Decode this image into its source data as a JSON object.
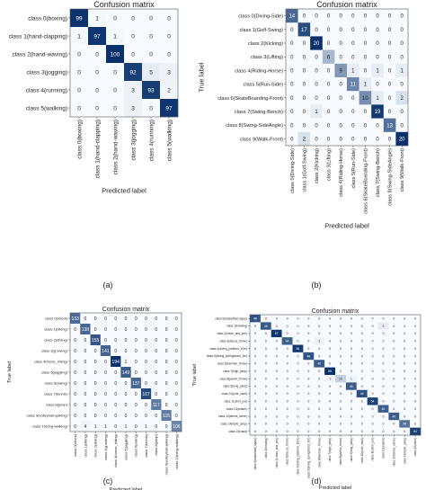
{
  "chart_data": [
    {
      "type": "heatmap",
      "caption": "(a)",
      "title": "Confusion matrix",
      "xlabel": "Predicted label",
      "ylabel": "True label",
      "categories": [
        "class 0(boxing)",
        "class 1(hand-clapping)",
        "class 2(hand-waving)",
        "class 3(jogging)",
        "class 4(running)",
        "class 5(walking)"
      ],
      "matrix": [
        [
          99,
          1,
          0,
          0,
          0,
          0
        ],
        [
          1,
          97,
          1,
          0,
          0,
          0
        ],
        [
          0,
          0,
          100,
          0,
          0,
          0
        ],
        [
          0,
          0,
          0,
          92,
          5,
          3
        ],
        [
          0,
          0,
          0,
          3,
          93,
          2
        ],
        [
          0,
          0,
          0,
          3,
          0,
          97
        ]
      ],
      "vmax": 100
    },
    {
      "type": "heatmap",
      "caption": "(b)",
      "title": "Confusion matrix",
      "xlabel": "Predicted label",
      "ylabel": "True label",
      "categories": [
        "class 0(Diving-Side)",
        "class 1(Golf-Swing)",
        "class 2(Kicking)",
        "class 3(Lifting)",
        "class 4(Riding-Horse)",
        "class 5(Run-Side)",
        "class 6(SkateBoarding-Front)",
        "class 7(Swing-Bench)",
        "class 8(Swing-SideAngle)",
        "class 9(Walk-Front)"
      ],
      "matrix": [
        [
          14,
          0,
          0,
          0,
          0,
          0,
          0,
          0,
          0,
          0
        ],
        [
          0,
          17,
          0,
          0,
          0,
          0,
          0,
          0,
          0,
          0
        ],
        [
          0,
          0,
          20,
          0,
          0,
          0,
          0,
          0,
          0,
          0
        ],
        [
          0,
          0,
          0,
          6,
          0,
          0,
          0,
          0,
          0,
          0
        ],
        [
          0,
          0,
          0,
          0,
          9,
          1,
          0,
          1,
          0,
          1
        ],
        [
          0,
          0,
          0,
          0,
          0,
          11,
          1,
          0,
          0,
          0
        ],
        [
          0,
          0,
          0,
          0,
          0,
          0,
          10,
          1,
          0,
          2
        ],
        [
          0,
          0,
          1,
          0,
          0,
          0,
          0,
          19,
          0,
          0
        ],
        [
          0,
          0,
          0,
          0,
          0,
          0,
          0,
          0,
          13,
          0
        ],
        [
          0,
          2,
          0,
          0,
          0,
          0,
          0,
          0,
          0,
          20
        ]
      ],
      "vmax": 20
    },
    {
      "type": "heatmap",
      "caption": "(c)",
      "title": "Confusion matrix",
      "xlabel": "Predicted label",
      "ylabel": "True label",
      "categories": [
        "class 0(shoot)",
        "class 1(biking)",
        "class 2(diving)",
        "class 3(g-swing)",
        "class 4(horse_riding)",
        "class 5(juggling)",
        "class 6(swing)",
        "class 7(tennis)",
        "class 8(jump)",
        "class 9(volleyball-spiking)",
        "class 10(dog-walking)"
      ],
      "matrix": [
        [
          133,
          0,
          0,
          0,
          0,
          0,
          0,
          0,
          0,
          0,
          0
        ],
        [
          0,
          138,
          0,
          0,
          0,
          0,
          0,
          0,
          0,
          0,
          0
        ],
        [
          0,
          0,
          155,
          0,
          0,
          0,
          0,
          0,
          0,
          0,
          0
        ],
        [
          0,
          0,
          0,
          141,
          0,
          0,
          0,
          0,
          0,
          0,
          0
        ],
        [
          0,
          0,
          0,
          0,
          194,
          1,
          0,
          0,
          0,
          0,
          0
        ],
        [
          0,
          0,
          0,
          0,
          0,
          149,
          0,
          0,
          0,
          0,
          0
        ],
        [
          0,
          0,
          0,
          0,
          0,
          0,
          137,
          0,
          0,
          0,
          0
        ],
        [
          0,
          0,
          0,
          0,
          0,
          0,
          0,
          167,
          0,
          0,
          0
        ],
        [
          0,
          0,
          0,
          0,
          0,
          0,
          0,
          0,
          117,
          0,
          0
        ],
        [
          0,
          0,
          0,
          0,
          0,
          0,
          0,
          0,
          0,
          115,
          0
        ],
        [
          0,
          4,
          1,
          1,
          0,
          1,
          0,
          1,
          0,
          0,
          106
        ]
      ],
      "vmax": 194
    },
    {
      "type": "heatmap",
      "caption": "(d)",
      "title": "Confusion matrix",
      "xlabel": "Predicted label",
      "ylabel": "True label",
      "categories": [
        "class 0(basketball_layup)",
        "class 1(bowling)",
        "class 2(clean_and_jerk)",
        "class 3(discus_throw)",
        "class 4(diving_platform_10m)",
        "class 5(diving_springboard_3m)",
        "class 6(hammer_throw)",
        "class 7(high_jump)",
        "class 8(javelin_throw)",
        "class 9(long_jump)",
        "class 10(pole_vault)",
        "class 11(shot_put)",
        "class 12(snatch)",
        "class 13(tennis_serve)",
        "class 14(triple_jump)",
        "class 15(vault)"
      ],
      "matrix": [
        [
          48,
          0,
          0,
          0,
          0,
          0,
          0,
          0,
          0,
          0,
          0,
          0,
          0,
          0,
          0,
          0
        ],
        [
          0,
          46,
          0,
          0,
          0,
          0,
          0,
          0,
          0,
          0,
          0,
          0,
          3,
          0,
          0,
          0
        ],
        [
          0,
          0,
          57,
          0,
          0,
          0,
          0,
          0,
          0,
          0,
          0,
          0,
          0,
          0,
          0,
          0
        ],
        [
          0,
          0,
          0,
          44,
          0,
          0,
          2,
          0,
          0,
          0,
          0,
          0,
          0,
          0,
          0,
          0
        ],
        [
          0,
          0,
          0,
          0,
          56,
          0,
          0,
          0,
          0,
          0,
          0,
          0,
          0,
          0,
          0,
          0
        ],
        [
          0,
          0,
          0,
          0,
          0,
          48,
          0,
          0,
          0,
          0,
          0,
          0,
          0,
          0,
          0,
          0
        ],
        [
          0,
          0,
          0,
          0,
          0,
          0,
          46,
          0,
          0,
          0,
          0,
          0,
          0,
          0,
          0,
          0
        ],
        [
          0,
          0,
          0,
          0,
          0,
          0,
          0,
          59,
          0,
          0,
          0,
          0,
          0,
          0,
          0,
          0
        ],
        [
          0,
          0,
          0,
          0,
          0,
          0,
          0,
          1,
          10,
          1,
          0,
          0,
          0,
          0,
          0,
          0
        ],
        [
          0,
          0,
          0,
          0,
          0,
          0,
          0,
          0,
          0,
          45,
          0,
          0,
          0,
          0,
          0,
          0
        ],
        [
          0,
          0,
          0,
          0,
          0,
          0,
          0,
          0,
          0,
          0,
          49,
          0,
          0,
          0,
          0,
          0
        ],
        [
          0,
          0,
          0,
          0,
          0,
          0,
          0,
          0,
          0,
          0,
          0,
          54,
          0,
          0,
          0,
          0
        ],
        [
          0,
          0,
          0,
          0,
          0,
          0,
          0,
          0,
          0,
          0,
          0,
          0,
          45,
          0,
          0,
          0
        ],
        [
          0,
          0,
          0,
          0,
          0,
          0,
          0,
          0,
          0,
          0,
          0,
          0,
          0,
          45,
          0,
          0
        ],
        [
          0,
          0,
          0,
          0,
          0,
          0,
          0,
          0,
          0,
          0,
          0,
          0,
          0,
          0,
          38,
          0
        ],
        [
          0,
          0,
          0,
          0,
          0,
          0,
          0,
          0,
          0,
          0,
          0,
          0,
          0,
          0,
          0,
          54
        ]
      ],
      "vmax": 59
    }
  ],
  "colors": {
    "low": "#f7fbff",
    "high": "#08306b",
    "grid": "#d9e6f2"
  }
}
